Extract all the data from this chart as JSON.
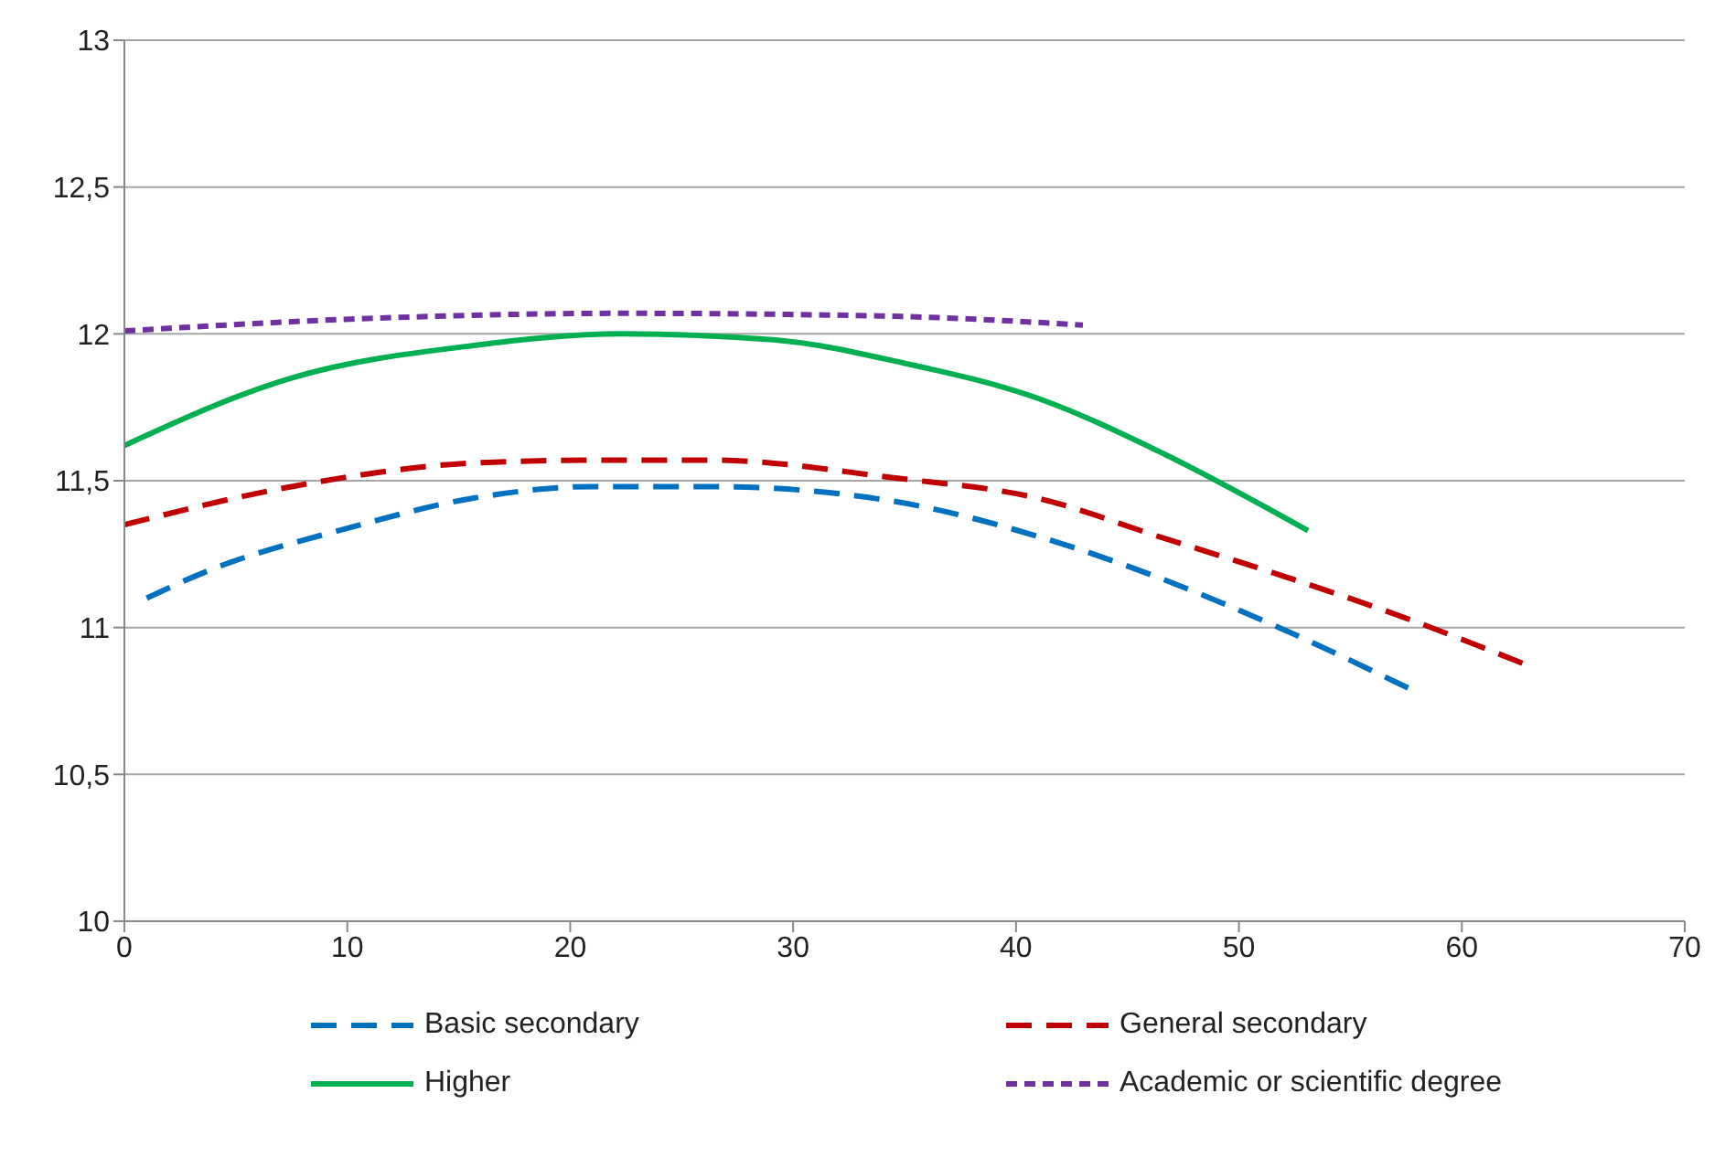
{
  "chart_data": {
    "type": "line",
    "xlim": [
      0,
      70
    ],
    "xticks": [
      0,
      10,
      20,
      30,
      40,
      50,
      60,
      70
    ],
    "ylim": [
      10,
      13
    ],
    "yticks": [
      {
        "value": 10,
        "label": "10"
      },
      {
        "value": 10.5,
        "label": "10,5"
      },
      {
        "value": 11,
        "label": "11"
      },
      {
        "value": 11.5,
        "label": "11,5"
      },
      {
        "value": 12,
        "label": "12"
      },
      {
        "value": 12.5,
        "label": "12,5"
      },
      {
        "value": 13,
        "label": "13"
      }
    ],
    "grid": "y",
    "legend": "bottom",
    "marker": "none",
    "series": [
      {
        "name": "Basic secondary",
        "color": "#0070c0",
        "line_style": "dashed",
        "x": [
          1,
          3.65,
          10.1,
          15.6,
          21,
          26.4,
          34.5,
          41,
          46.4,
          51.8,
          57.7
        ],
        "values": [
          11.1,
          11.19,
          11.34,
          11.44,
          11.48,
          11.48,
          11.43,
          11.31,
          11.17,
          11.0,
          10.79
        ]
      },
      {
        "name": "General secondary",
        "color": "#c00000",
        "line_style": "dashed",
        "x": [
          0,
          7.5,
          15.6,
          21,
          26.4,
          34.5,
          41,
          46.4,
          51.8,
          57.2,
          63
        ],
        "values": [
          11.35,
          11.48,
          11.56,
          11.57,
          11.57,
          11.51,
          11.44,
          11.31,
          11.18,
          11.04,
          10.87
        ]
      },
      {
        "name": "Higher",
        "color": "#00b050",
        "line_style": "solid",
        "x": [
          0,
          7.5,
          15.6,
          22.3,
          29.1,
          35,
          41,
          46.4,
          53.1
        ],
        "values": [
          11.62,
          11.85,
          11.96,
          12.0,
          11.98,
          11.9,
          11.78,
          11.6,
          11.33
        ]
      },
      {
        "name": "Academic or scientific degree",
        "color": "#7030a0",
        "line_style": "dotted",
        "x": [
          0,
          10.1,
          22.3,
          34.5,
          43
        ],
        "values": [
          12.01,
          12.05,
          12.07,
          12.06,
          12.03
        ]
      }
    ]
  }
}
